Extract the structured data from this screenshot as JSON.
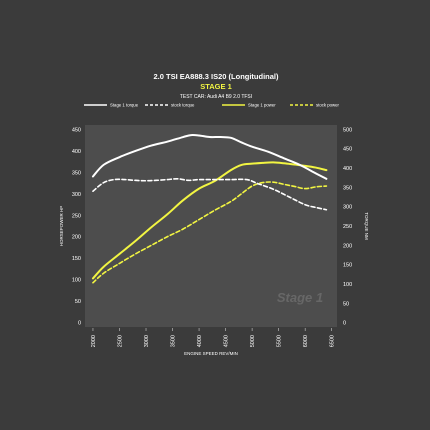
{
  "chart_data": {
    "type": "line",
    "title": "2.0 TSI EA888.3 IS20 (Longitudinal)",
    "subtitle": "STAGE 1",
    "test_car": "TEST CAR:  Audi A4 B9 2.0 TFSI",
    "watermark": "Stage 1",
    "xlabel": "ENGINE SPEED REV/MIN",
    "ylabel_left": "HORSEPOWER HP",
    "ylabel_right": "TORQUE NM",
    "x_ticks": [
      "2000",
      "2500",
      "3000",
      "3500",
      "4000",
      "4500",
      "5000",
      "5500",
      "6000",
      "6500"
    ],
    "y_left_ticks": [
      "0",
      "50",
      "100",
      "150",
      "200",
      "250",
      "300",
      "350",
      "400",
      "450"
    ],
    "y_right_ticks": [
      "0",
      "50",
      "100",
      "150",
      "200",
      "250",
      "300",
      "350",
      "400",
      "450",
      "500"
    ],
    "xlim": [
      1850,
      6600
    ],
    "ylim_left": [
      -10,
      460
    ],
    "ylim_right": [
      -11.1,
      511.1
    ],
    "grid": false,
    "legend_position": "top",
    "colors": {
      "background": "#3b3b3b",
      "plot_area": "#4d4d4d",
      "torque": "#ffffff",
      "power": "#f2f542"
    },
    "series": [
      {
        "name": "Stage 1 torque",
        "axis": "right",
        "style": "solid",
        "color": "#ffffff",
        "x": [
          2000,
          2200,
          2500,
          2800,
          3100,
          3400,
          3700,
          3850,
          4000,
          4200,
          4400,
          4600,
          4800,
          5000,
          5300,
          5600,
          5900,
          6200,
          6400
        ],
        "y": [
          378,
          408,
          428,
          444,
          458,
          468,
          480,
          485,
          484,
          480,
          480,
          478,
          466,
          455,
          442,
          425,
          408,
          386,
          372
        ]
      },
      {
        "name": "stock torque",
        "axis": "right",
        "style": "dashed",
        "color": "#ffffff",
        "x": [
          2000,
          2200,
          2400,
          2600,
          2800,
          3000,
          3200,
          3400,
          3600,
          3800,
          4000,
          4300,
          4600,
          4900,
          5100,
          5400,
          5700,
          6000,
          6200,
          6400
        ],
        "y": [
          340,
          362,
          370,
          370,
          368,
          367,
          368,
          370,
          372,
          368,
          370,
          370,
          370,
          370,
          360,
          345,
          325,
          305,
          298,
          292
        ]
      },
      {
        "name": "Stage 1 power",
        "axis": "left",
        "style": "solid",
        "color": "#f2f542",
        "x": [
          2000,
          2200,
          2500,
          2800,
          3100,
          3400,
          3700,
          4000,
          4300,
          4600,
          4800,
          5000,
          5200,
          5400,
          5600,
          5800,
          6000,
          6200,
          6400
        ],
        "y": [
          103,
          130,
          160,
          190,
          222,
          252,
          285,
          312,
          330,
          355,
          367,
          370,
          372,
          373,
          371,
          368,
          365,
          361,
          355
        ]
      },
      {
        "name": "stock power",
        "axis": "left",
        "style": "dashed",
        "color": "#f2f542",
        "x": [
          2000,
          2200,
          2500,
          2800,
          3100,
          3400,
          3700,
          4000,
          4300,
          4600,
          4800,
          5000,
          5200,
          5400,
          5600,
          5800,
          6000,
          6200,
          6400
        ],
        "y": [
          93,
          115,
          138,
          160,
          180,
          200,
          218,
          240,
          262,
          282,
          300,
          318,
          326,
          327,
          322,
          317,
          312,
          316,
          318
        ]
      }
    ]
  }
}
